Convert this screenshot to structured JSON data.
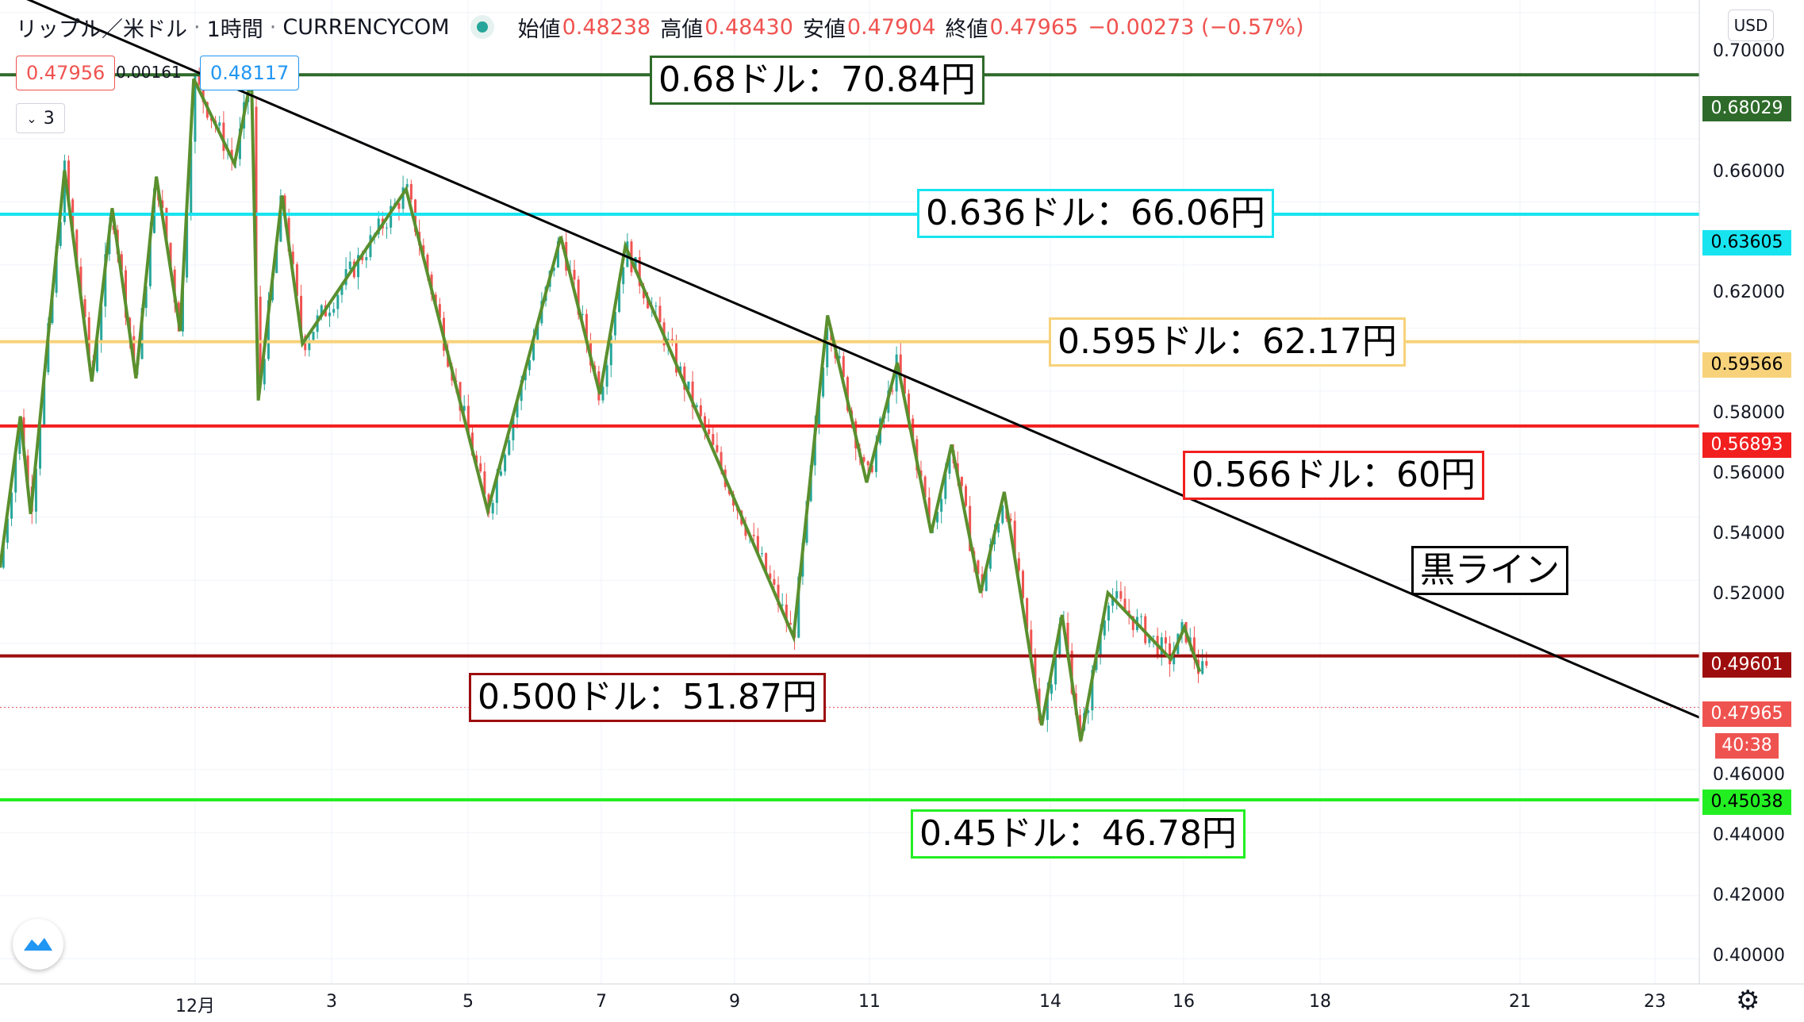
{
  "header": {
    "symbol": "リップル／米ドル",
    "interval": "1時間",
    "source": "CURRENCYCOM",
    "open_label": "始値",
    "open": "0.48238",
    "high_label": "高値",
    "high": "0.48430",
    "low_label": "安値",
    "low": "0.47904",
    "close_label": "終値",
    "close": "0.47965",
    "change": "−0.00273 (−0.57%)"
  },
  "trade": {
    "sell": "0.47956",
    "spread": "0.00161",
    "buy": "0.48117"
  },
  "indicators_toggle": "3",
  "currency_button": "USD",
  "countdown": "40:38",
  "annotations": {
    "a068": "0.68ドル：70.84円",
    "a0636": "0.636ドル：66.06円",
    "a0595": "0.595ドル：62.17円",
    "a0566": "0.566ドル：60円",
    "a0500": "0.500ドル：51.87円",
    "a045": "0.45ドル：46.78円",
    "black": "黒ライン"
  },
  "colors": {
    "dark_green": "#2e6b2a",
    "cyan": "#18e4f0",
    "yellow": "#f7d27a",
    "red": "#f21f1f",
    "dark_red": "#9e0d0d",
    "bright_green": "#22ee22",
    "zigzag": "#5a8f2e",
    "candle_up": "#26a69a",
    "candle_down": "#ef5350"
  },
  "chart_data": {
    "type": "line",
    "y_axis_labels": [
      "0.70000",
      "0.66000",
      "0.62000",
      "0.58000",
      "0.56000",
      "0.54000",
      "0.52000",
      "0.46000",
      "0.44000",
      "0.42000",
      "0.40000"
    ],
    "x_axis_labels": [
      "12月",
      "3",
      "5",
      "7",
      "9",
      "11",
      "14",
      "16",
      "18",
      "21",
      "23"
    ],
    "ylim": [
      0.392,
      0.704
    ],
    "horizontal_levels": [
      {
        "value": 0.68029,
        "label": "0.68029",
        "color": "#2e6b2a"
      },
      {
        "value": 0.63605,
        "label": "0.63605",
        "color": "#18e4f0"
      },
      {
        "value": 0.59566,
        "label": "0.59566",
        "color": "#f7d27a"
      },
      {
        "value": 0.56893,
        "label": "0.56893",
        "color": "#f21f1f"
      },
      {
        "value": 0.49601,
        "label": "0.49601",
        "color": "#9e0d0d"
      },
      {
        "value": 0.45038,
        "label": "0.45038",
        "color": "#22ee22"
      }
    ],
    "current_price": {
      "value": 0.47965,
      "label": "0.47965"
    },
    "trendline": {
      "name": "黒ライン",
      "from": [
        0,
        0.708
      ],
      "to": [
        1,
        0.4765
      ]
    },
    "zigzag": [
      [
        0.0,
        0.524
      ],
      [
        0.012,
        0.572
      ],
      [
        0.018,
        0.541
      ],
      [
        0.038,
        0.65
      ],
      [
        0.054,
        0.583
      ],
      [
        0.066,
        0.638
      ],
      [
        0.08,
        0.584
      ],
      [
        0.092,
        0.648
      ],
      [
        0.106,
        0.599
      ],
      [
        0.114,
        0.679
      ],
      [
        0.138,
        0.652
      ],
      [
        0.148,
        0.68
      ],
      [
        0.152,
        0.577
      ],
      [
        0.166,
        0.642
      ],
      [
        0.178,
        0.595
      ],
      [
        0.239,
        0.644
      ],
      [
        0.287,
        0.542
      ],
      [
        0.33,
        0.629
      ],
      [
        0.353,
        0.579
      ],
      [
        0.368,
        0.626
      ],
      [
        0.467,
        0.502
      ],
      [
        0.487,
        0.604
      ],
      [
        0.51,
        0.551
      ],
      [
        0.528,
        0.589
      ],
      [
        0.548,
        0.535
      ],
      [
        0.56,
        0.563
      ],
      [
        0.577,
        0.516
      ],
      [
        0.591,
        0.548
      ],
      [
        0.613,
        0.474
      ],
      [
        0.625,
        0.509
      ],
      [
        0.636,
        0.469
      ],
      [
        0.652,
        0.516
      ],
      [
        0.689,
        0.495
      ],
      [
        0.697,
        0.505
      ],
      [
        0.706,
        0.491
      ]
    ],
    "x_range_data_end": 0.71
  }
}
